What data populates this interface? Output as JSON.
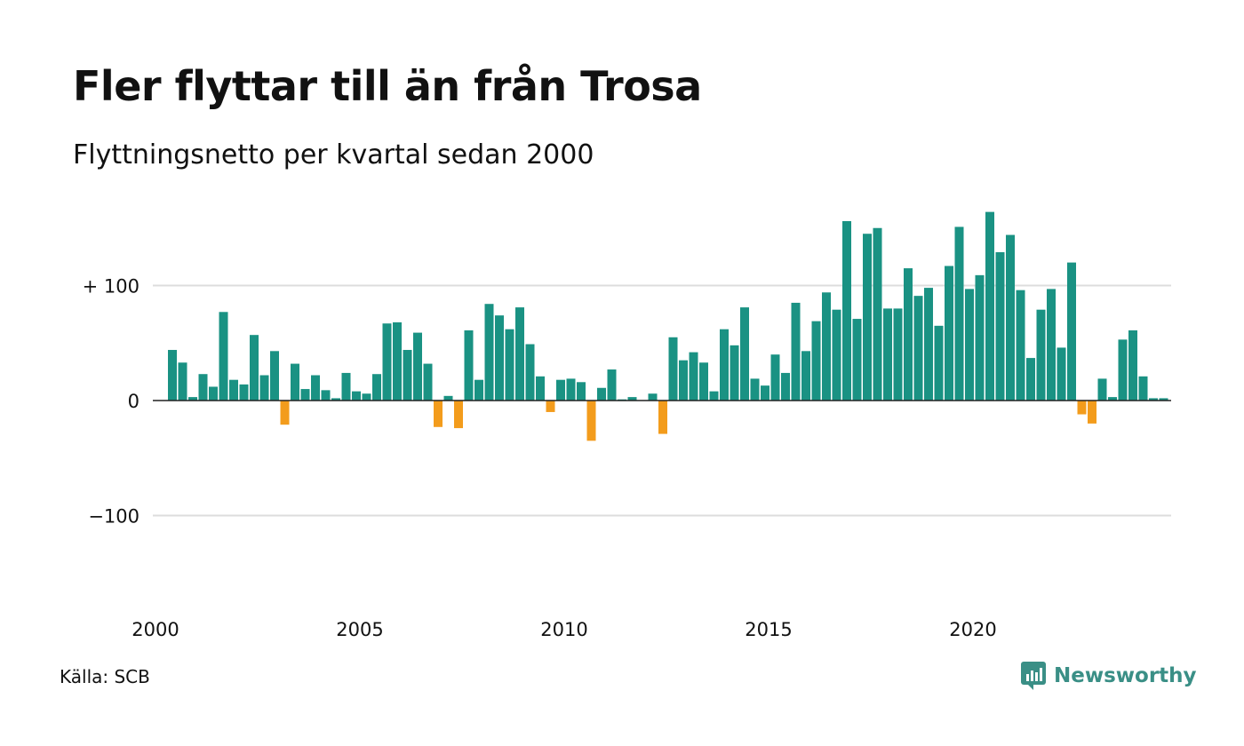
{
  "title": "Fler flyttar till än från Trosa",
  "subtitle": "Flyttningsnetto per kvartal sedan 2000",
  "source": "Källa: SCB",
  "brand": "Newsworthy",
  "colors": {
    "positive": "#1a9283",
    "negative": "#f39c1c",
    "grid": "#dddddd",
    "zero_line": "#222222",
    "brand": "#3a8f86"
  },
  "chart_data": {
    "type": "bar",
    "x_start": "2000 Q1",
    "ylim": [
      -170,
      170
    ],
    "y_ticks": [
      {
        "value": 100,
        "label": "+ 100"
      },
      {
        "value": 0,
        "label": "0"
      },
      {
        "value": -100,
        "label": "−100"
      }
    ],
    "x_ticks": [
      {
        "index": 0,
        "label": "2000"
      },
      {
        "index": 20,
        "label": "2005"
      },
      {
        "index": 40,
        "label": "2010"
      },
      {
        "index": 60,
        "label": "2015"
      },
      {
        "index": 80,
        "label": "2020"
      }
    ],
    "grid": true,
    "values": [
      44,
      33,
      3,
      23,
      12,
      77,
      18,
      14,
      57,
      22,
      43,
      -21,
      32,
      10,
      22,
      9,
      2,
      24,
      8,
      6,
      23,
      67,
      68,
      44,
      59,
      32,
      -23,
      4,
      -24,
      61,
      18,
      84,
      74,
      62,
      81,
      49,
      21,
      -10,
      18,
      19,
      16,
      -35,
      11,
      27,
      1,
      3,
      0,
      6,
      -29,
      55,
      35,
      42,
      33,
      8,
      62,
      48,
      81,
      19,
      13,
      40,
      24,
      85,
      43,
      69,
      94,
      79,
      156,
      71,
      145,
      150,
      80,
      80,
      115,
      91,
      98,
      65,
      117,
      151,
      97,
      109,
      164,
      129,
      144,
      96,
      37,
      79,
      97,
      46,
      120,
      -12,
      -20,
      19,
      3,
      53,
      61,
      21,
      2,
      2
    ]
  }
}
